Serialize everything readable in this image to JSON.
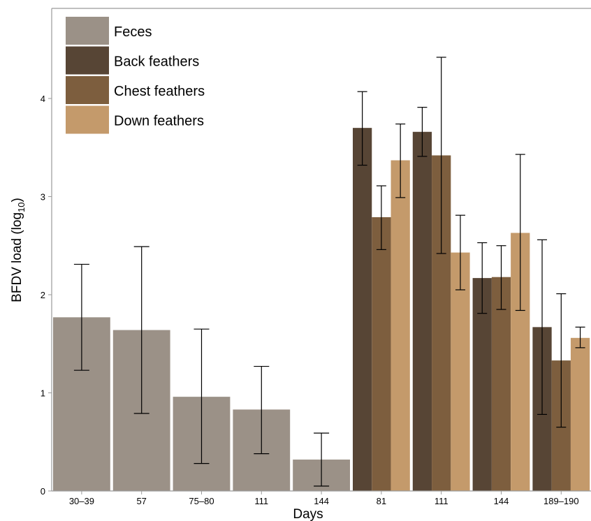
{
  "chart_data": {
    "type": "bar",
    "xlabel": "Days",
    "ylabel": "BFDV load (log",
    "ylabel_sub": "10",
    "ylabel_suffix": ")",
    "ylim": [
      0,
      5
    ],
    "yticks": [
      0,
      1,
      2,
      3,
      4
    ],
    "legend_placement": "top-left",
    "grid": false,
    "groups": [
      {
        "label": "30–39",
        "bars": [
          {
            "series": "Feces",
            "value": 1.77,
            "err_low": 1.23,
            "err_high": 2.31
          }
        ]
      },
      {
        "label": "57",
        "bars": [
          {
            "series": "Feces",
            "value": 1.64,
            "err_low": 0.79,
            "err_high": 2.49
          }
        ]
      },
      {
        "label": "75–80",
        "bars": [
          {
            "series": "Feces",
            "value": 0.96,
            "err_low": 0.28,
            "err_high": 1.65
          }
        ]
      },
      {
        "label": "111",
        "bars": [
          {
            "series": "Feces",
            "value": 0.83,
            "err_low": 0.38,
            "err_high": 1.27
          }
        ]
      },
      {
        "label": "144",
        "bars": [
          {
            "series": "Feces",
            "value": 0.32,
            "err_low": 0.05,
            "err_high": 0.59
          }
        ]
      },
      {
        "label": "81",
        "bars": [
          {
            "series": "Back feathers",
            "value": 3.7,
            "err_low": 3.32,
            "err_high": 4.07
          },
          {
            "series": "Chest feathers",
            "value": 2.79,
            "err_low": 2.46,
            "err_high": 3.11
          },
          {
            "series": "Down feathers",
            "value": 3.37,
            "err_low": 2.99,
            "err_high": 3.74
          }
        ]
      },
      {
        "label": "111",
        "bars": [
          {
            "series": "Back feathers",
            "value": 3.66,
            "err_low": 3.41,
            "err_high": 3.91
          },
          {
            "series": "Chest feathers",
            "value": 3.42,
            "err_low": 2.42,
            "err_high": 4.42
          },
          {
            "series": "Down feathers",
            "value": 2.43,
            "err_low": 2.05,
            "err_high": 2.81
          }
        ]
      },
      {
        "label": "144",
        "bars": [
          {
            "series": "Back feathers",
            "value": 2.17,
            "err_low": 1.81,
            "err_high": 2.53
          },
          {
            "series": "Chest feathers",
            "value": 2.18,
            "err_low": 1.85,
            "err_high": 2.5
          },
          {
            "series": "Down feathers",
            "value": 2.63,
            "err_low": 1.84,
            "err_high": 3.43
          }
        ]
      },
      {
        "label": "189–190",
        "bars": [
          {
            "series": "Back feathers",
            "value": 1.67,
            "err_low": 0.78,
            "err_high": 2.56
          },
          {
            "series": "Chest feathers",
            "value": 1.33,
            "err_low": 0.65,
            "err_high": 2.01
          },
          {
            "series": "Down feathers",
            "value": 1.56,
            "err_low": 1.46,
            "err_high": 1.67
          }
        ]
      }
    ],
    "legend": [
      {
        "name": "Feces",
        "color": "#9b9187"
      },
      {
        "name": "Back feathers",
        "color": "#574535"
      },
      {
        "name": "Chest feathers",
        "color": "#7d5e3e"
      },
      {
        "name": "Down feathers",
        "color": "#c49a6b"
      }
    ]
  }
}
